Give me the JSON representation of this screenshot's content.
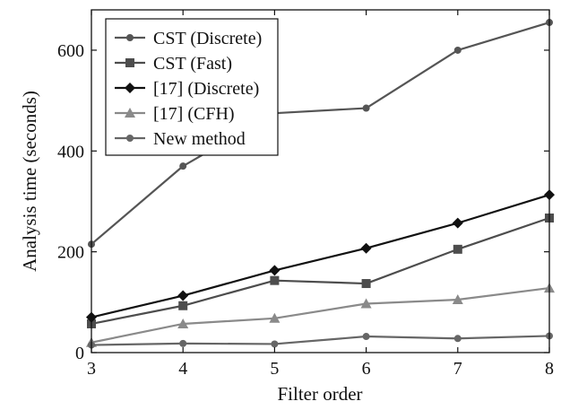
{
  "chart_data": {
    "type": "line",
    "title": "",
    "xlabel": "Filter order",
    "ylabel": "Analysis time (seconds)",
    "x": [
      3,
      4,
      5,
      6,
      7,
      8
    ],
    "xlim": [
      3,
      8
    ],
    "ylim": [
      0,
      680
    ],
    "xticks": [
      3,
      4,
      5,
      6,
      7,
      8
    ],
    "yticks": [
      0,
      200,
      400,
      600
    ],
    "grid": false,
    "legend_position": "top-left",
    "series": [
      {
        "name": "CST (Discrete)",
        "marker": "circle",
        "color": "#555555",
        "values": [
          215,
          370,
          475,
          485,
          600,
          655
        ]
      },
      {
        "name": "CST (Fast)",
        "marker": "square",
        "color": "#4d4d4d",
        "values": [
          57,
          93,
          143,
          137,
          205,
          267
        ]
      },
      {
        "name": "[17] (Discrete)",
        "marker": "diamond",
        "color": "#111111",
        "values": [
          70,
          113,
          163,
          207,
          257,
          313
        ]
      },
      {
        "name": "[17] (CFH)",
        "marker": "triangle",
        "color": "#8a8a8a",
        "values": [
          20,
          57,
          68,
          97,
          105,
          128
        ]
      },
      {
        "name": "New method",
        "marker": "circle",
        "color": "#666666",
        "values": [
          15,
          18,
          17,
          32,
          28,
          33
        ]
      }
    ]
  }
}
